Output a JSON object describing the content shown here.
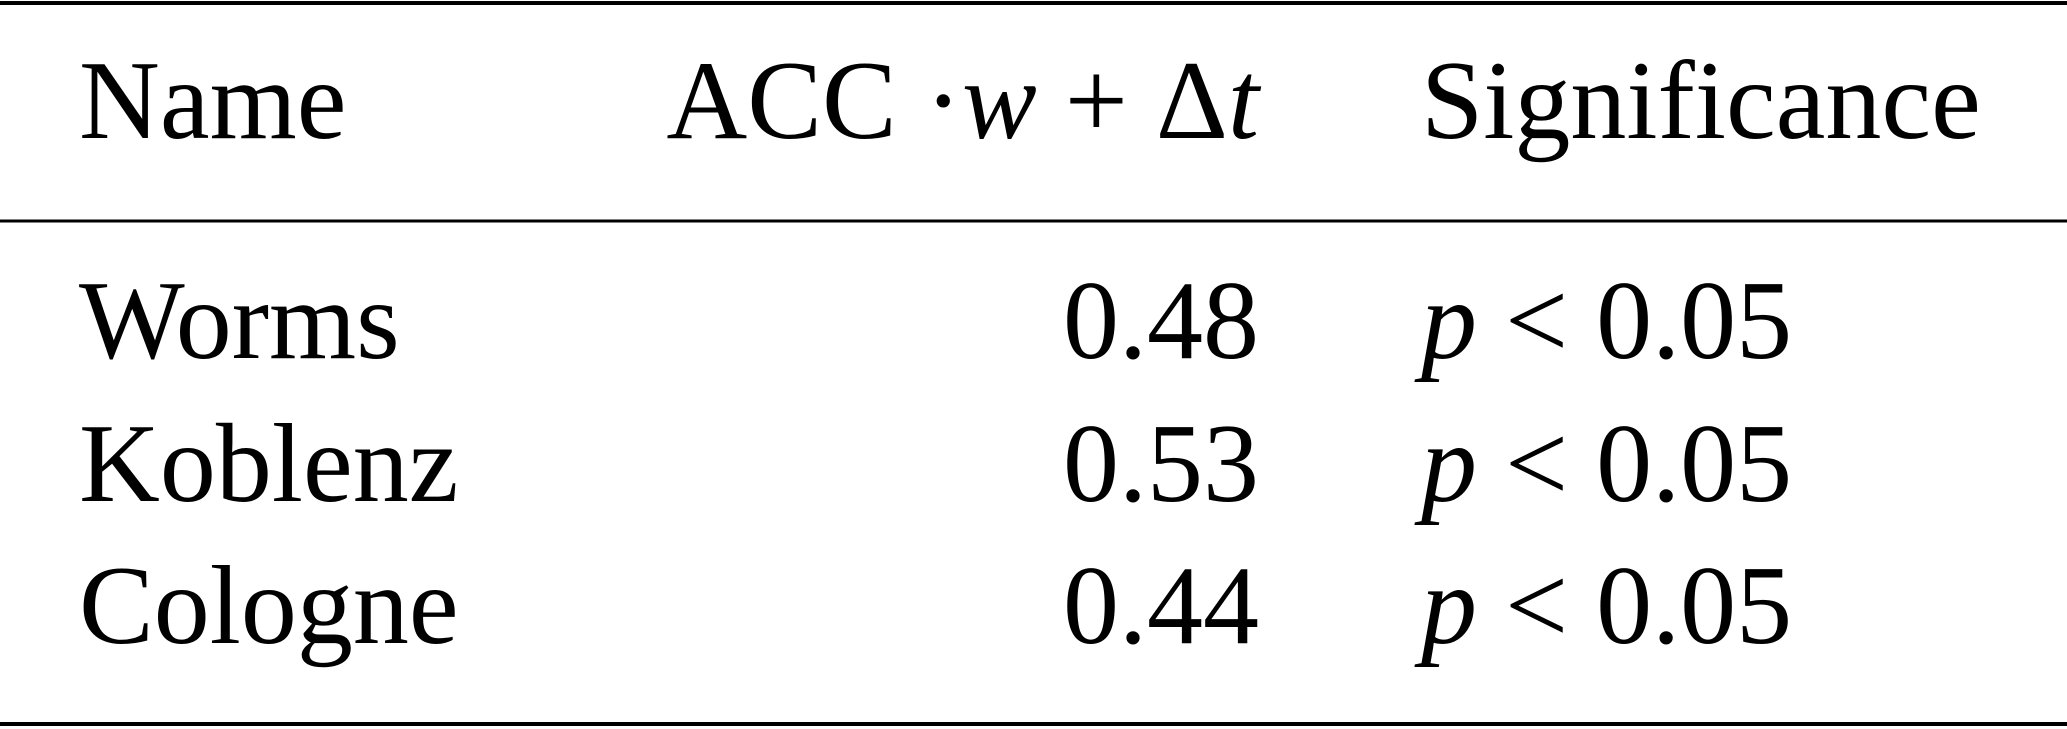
{
  "table": {
    "header": [
      {
        "parts": [
          {
            "text": "Name"
          }
        ]
      },
      {
        "parts": [
          {
            "text": "ACC ·"
          },
          {
            "text": "w",
            "italic": true
          },
          {
            "text": " + Δ"
          },
          {
            "text": "t",
            "italic": true
          }
        ]
      },
      {
        "parts": [
          {
            "text": "Significance"
          }
        ]
      }
    ],
    "rows": [
      [
        {
          "parts": [
            {
              "text": "Worms"
            }
          ]
        },
        {
          "parts": [
            {
              "text": "0.48"
            }
          ]
        },
        {
          "parts": [
            {
              "text": "p",
              "italic": true
            },
            {
              "text": " < 0.05"
            }
          ]
        }
      ],
      [
        {
          "parts": [
            {
              "text": "Koblenz"
            }
          ]
        },
        {
          "parts": [
            {
              "text": "0.53"
            }
          ]
        },
        {
          "parts": [
            {
              "text": "p",
              "italic": true
            },
            {
              "text": " < 0.05"
            }
          ]
        }
      ],
      [
        {
          "parts": [
            {
              "text": "Cologne"
            }
          ]
        },
        {
          "parts": [
            {
              "text": "0.44"
            }
          ]
        },
        {
          "parts": [
            {
              "text": "p",
              "italic": true
            },
            {
              "text": " < 0.05"
            }
          ]
        }
      ]
    ]
  }
}
